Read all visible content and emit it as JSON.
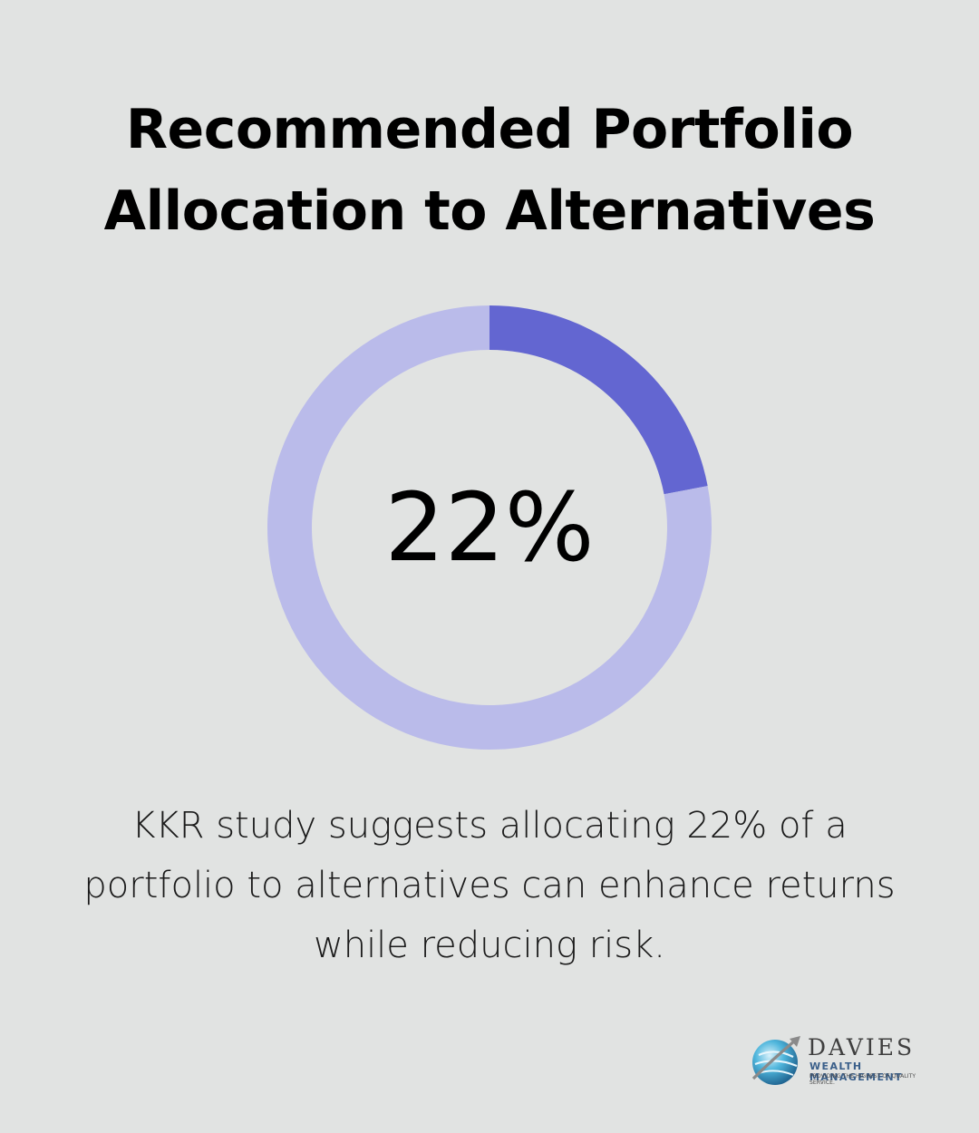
{
  "title": {
    "line1": "Recommended Portfolio",
    "line2": "Allocation to Alternatives"
  },
  "chart_data": {
    "type": "pie",
    "title": "",
    "center_label": "22%",
    "series": [
      {
        "value": 22,
        "color": "#6366d1"
      },
      {
        "value": 78,
        "color": "#babbea"
      }
    ]
  },
  "caption": {
    "line1": "KKR study suggests allocating 22% of a",
    "line2": "portfolio to alternatives can enhance returns",
    "line3": "while reducing risk."
  },
  "logo": {
    "name": "DAVIES",
    "subtitle": "WEALTH MANAGEMENT",
    "tagline": "PROVIDING THE HIGHEST OF QUALITY SERVICE."
  }
}
